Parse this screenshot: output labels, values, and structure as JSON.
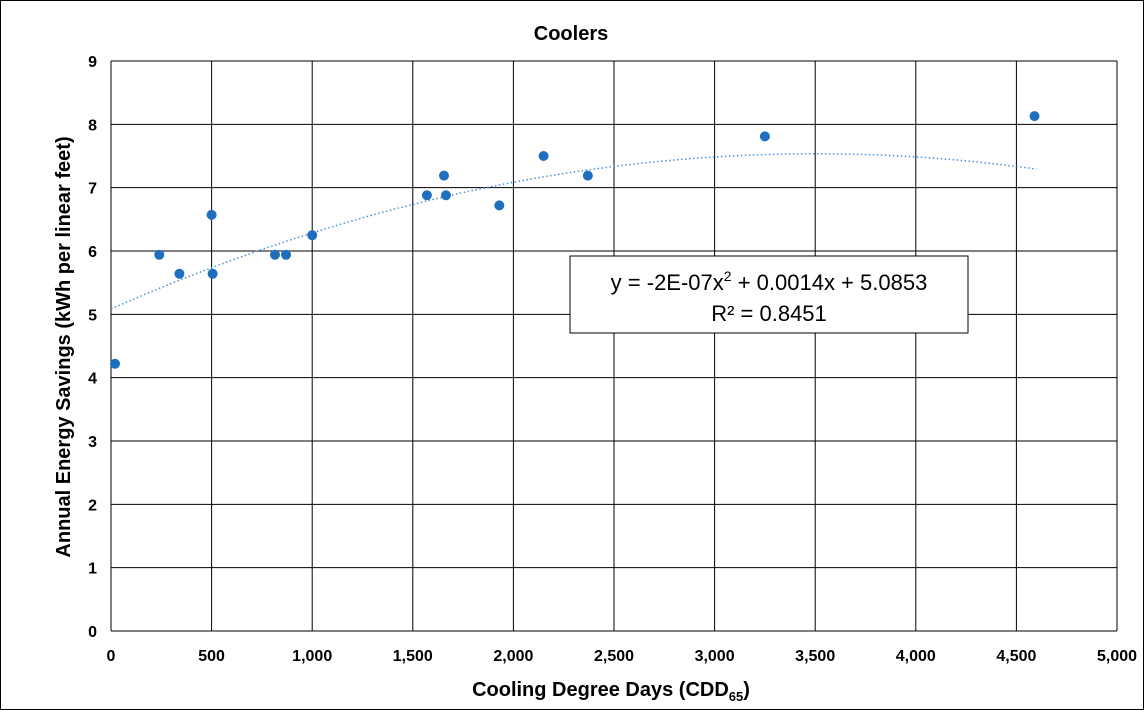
{
  "chart_data": {
    "type": "scatter",
    "title": "Coolers",
    "xlabel": "Cooling Degree Days (CDD",
    "xlabel_sub": "65",
    "xlabel_end": ")",
    "ylabel": "Annual Energy Savings (kWh per linear feet)",
    "xlim": [
      0,
      5000
    ],
    "ylim": [
      0,
      9
    ],
    "grid": true,
    "x_ticks": [
      0,
      500,
      1000,
      1500,
      2000,
      2500,
      3000,
      3500,
      4000,
      4500,
      5000
    ],
    "x_tick_labels": [
      "0",
      "500",
      "1,000",
      "1,500",
      "2,000",
      "2,500",
      "3,000",
      "3,500",
      "4,000",
      "4,500",
      "5,000"
    ],
    "y_ticks": [
      0,
      1,
      2,
      3,
      4,
      5,
      6,
      7,
      8,
      9
    ],
    "y_tick_labels": [
      "0",
      "1",
      "2",
      "3",
      "4",
      "5",
      "6",
      "7",
      "8",
      "9"
    ],
    "point_color": "#1f6fbf",
    "trend_color": "#4a90d9",
    "points": [
      {
        "x": 20,
        "y": 4.22
      },
      {
        "x": 240,
        "y": 5.94
      },
      {
        "x": 340,
        "y": 5.64
      },
      {
        "x": 500,
        "y": 6.57
      },
      {
        "x": 505,
        "y": 5.64
      },
      {
        "x": 815,
        "y": 5.94
      },
      {
        "x": 870,
        "y": 5.94
      },
      {
        "x": 1000,
        "y": 6.25
      },
      {
        "x": 1570,
        "y": 6.88
      },
      {
        "x": 1655,
        "y": 7.19
      },
      {
        "x": 1665,
        "y": 6.88
      },
      {
        "x": 1930,
        "y": 6.72
      },
      {
        "x": 2150,
        "y": 7.5
      },
      {
        "x": 2370,
        "y": 7.19
      },
      {
        "x": 3250,
        "y": 7.81
      },
      {
        "x": 4590,
        "y": 8.13
      }
    ],
    "trendline": {
      "type": "polynomial",
      "coefficients": [
        -2e-07,
        0.0014,
        5.0853
      ],
      "x_range": [
        0,
        4600
      ],
      "equation_prefix": "y = -2E-07x",
      "equation_sup": "2",
      "equation_suffix": " + 0.0014x + 5.0853",
      "r2_label": "R² = 0.8451"
    }
  }
}
